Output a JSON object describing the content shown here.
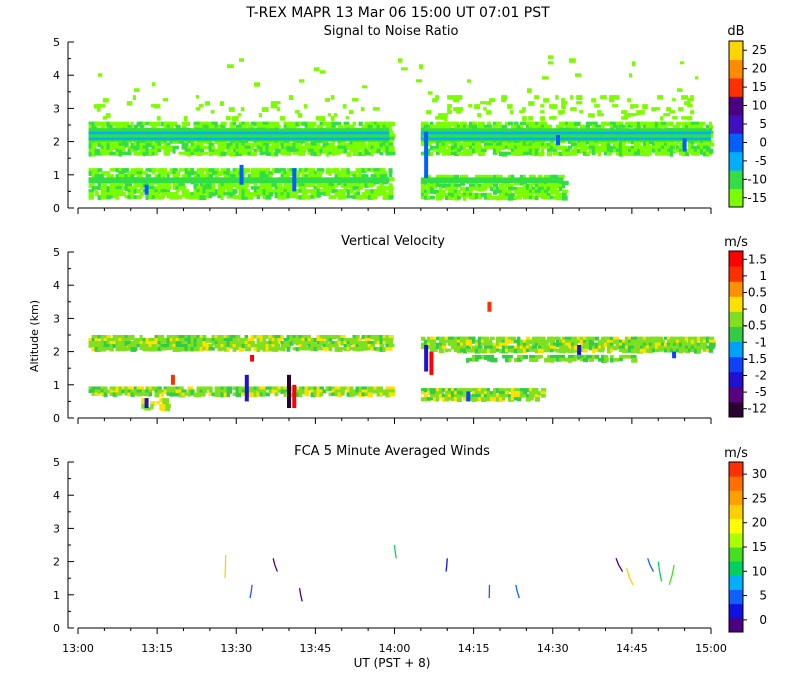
{
  "title": "T-REX   MAPR 13 Mar 06   15:00 UT   07:01   PST",
  "xlabel": "UT  (PST + 8)",
  "ylabel": "Altitude (km)",
  "x_ticks": [
    "13:00",
    "13:15",
    "13:30",
    "13:45",
    "14:00",
    "14:15",
    "14:30",
    "14:45",
    "15:00"
  ],
  "y_ticks": [
    "0",
    "1",
    "2",
    "3",
    "4",
    "5"
  ],
  "chart_data": [
    {
      "type": "heatmap",
      "title": "Signal to Noise Ratio",
      "unit": "dB",
      "xlim": [
        "13:00",
        "15:00"
      ],
      "ylim": [
        0,
        5
      ],
      "colorbar": {
        "labels": [
          "-15",
          "-10",
          "-5",
          "0",
          "5",
          "10",
          "15",
          "20",
          "25"
        ],
        "colors": [
          "#7cfc00",
          "#33dd44",
          "#00b0ff",
          "#0060ff",
          "#4010c0",
          "#4b0082",
          "#ff3000",
          "#ff8c00",
          "#ffd700"
        ]
      },
      "features": [
        {
          "band_km": [
            2.0,
            2.35
          ],
          "from": "13:02",
          "to": "13:59",
          "core_db": -5
        },
        {
          "band_km": [
            2.0,
            2.4
          ],
          "from": "14:05",
          "to": "15:00",
          "core_db": -5
        },
        {
          "band_km": [
            0.4,
            0.95
          ],
          "from": "13:02",
          "to": "13:59",
          "core_db": -10
        },
        {
          "band_km": [
            0.4,
            0.9
          ],
          "from": "14:05",
          "to": "14:32",
          "core_db": -10
        }
      ]
    },
    {
      "type": "heatmap",
      "title": "Vertical Velocity",
      "unit": "m/s",
      "xlim": [
        "13:00",
        "15:00"
      ],
      "ylim": [
        0,
        5
      ],
      "colorbar": {
        "labels": [
          "-12",
          "-5",
          "-2",
          "-1.5",
          "-1",
          "-0.5",
          "0",
          "0.5",
          "1",
          "1.5"
        ],
        "colors": [
          "#2a0033",
          "#5a0080",
          "#2010d0",
          "#1040ff",
          "#00a0ff",
          "#33cc44",
          "#80e020",
          "#ffe000",
          "#ff9000",
          "#ff3000",
          "#ff0000"
        ]
      },
      "features": [
        {
          "band_km": [
            2.05,
            2.45
          ],
          "from": "13:02",
          "to": "13:59"
        },
        {
          "band_km": [
            2.0,
            2.4
          ],
          "from": "14:05",
          "to": "15:00"
        },
        {
          "band_km": [
            0.75,
            0.9
          ],
          "from": "13:02",
          "to": "13:59"
        },
        {
          "band_km": [
            0.6,
            0.9
          ],
          "from": "14:05",
          "to": "14:28"
        }
      ]
    },
    {
      "type": "scatter",
      "title": "FCA 5 Minute Averaged Winds",
      "unit": "m/s",
      "xlim": [
        "13:00",
        "15:00"
      ],
      "ylim": [
        0,
        5
      ],
      "colorbar": {
        "labels": [
          "0",
          "5",
          "10",
          "15",
          "20",
          "25",
          "30"
        ],
        "colors": [
          "#4b0082",
          "#1010e0",
          "#1060ff",
          "#00b0ff",
          "#00d060",
          "#44e020",
          "#aaff00",
          "#ffff00",
          "#ffd000",
          "#ffa000",
          "#ff7000",
          "#ff3000"
        ]
      },
      "barbs": [
        {
          "t": "13:28",
          "alt": [
            2.2,
            1.5
          ],
          "speed": 20
        },
        {
          "t": "13:33",
          "alt": [
            1.3,
            0.9
          ],
          "speed": 5
        },
        {
          "t": "13:37",
          "alt": [
            2.1,
            1.7
          ],
          "speed": 2
        },
        {
          "t": "13:42",
          "alt": [
            1.2,
            0.8
          ],
          "speed": 1
        },
        {
          "t": "14:00",
          "alt": [
            2.5,
            2.1
          ],
          "speed": 10
        },
        {
          "t": "14:10",
          "alt": [
            2.1,
            1.7
          ],
          "speed": 3
        },
        {
          "t": "14:18",
          "alt": [
            1.3,
            0.9
          ],
          "speed": 6
        },
        {
          "t": "14:23",
          "alt": [
            1.3,
            0.9
          ],
          "speed": 6
        },
        {
          "t": "14:42",
          "alt": [
            2.1,
            1.7
          ],
          "speed": 2
        },
        {
          "t": "14:44",
          "alt": [
            1.8,
            1.3
          ],
          "speed": 21
        },
        {
          "t": "14:48",
          "alt": [
            2.1,
            1.7
          ],
          "speed": 5
        },
        {
          "t": "14:50",
          "alt": [
            2.0,
            1.4
          ],
          "speed": 12
        },
        {
          "t": "14:53",
          "alt": [
            1.9,
            1.3
          ],
          "speed": 13
        }
      ]
    }
  ]
}
